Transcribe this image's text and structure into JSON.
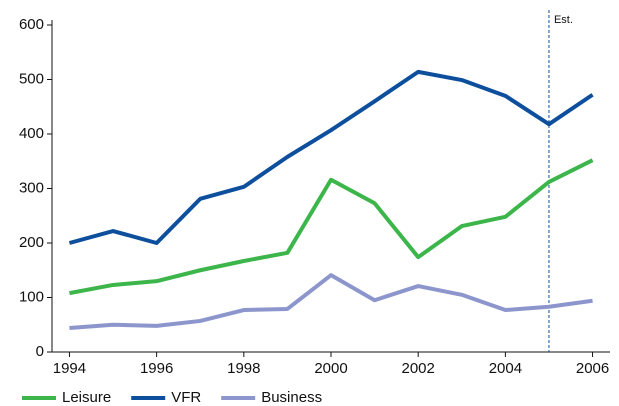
{
  "chart_data": {
    "type": "line",
    "x": [
      1994,
      1995,
      1996,
      1997,
      1998,
      1999,
      2000,
      2001,
      2002,
      2003,
      2004,
      2005,
      2006
    ],
    "series": [
      {
        "name": "Leisure",
        "color": "#3cb54a",
        "values": [
          108,
          123,
          130,
          150,
          167,
          182,
          316,
          273,
          174,
          231,
          248,
          312,
          352
        ]
      },
      {
        "name": "VFR",
        "color": "#0d4f9c",
        "values": [
          200,
          222,
          200,
          281,
          303,
          358,
          407,
          460,
          514,
          499,
          470,
          418,
          472
        ]
      },
      {
        "name": "Business",
        "color": "#8c96cc",
        "values": [
          44,
          50,
          48,
          57,
          77,
          79,
          141,
          95,
          121,
          105,
          77,
          83,
          94
        ]
      }
    ],
    "xlim": [
      1993.6,
      2006.4
    ],
    "xticks": [
      1994,
      1996,
      1998,
      2000,
      2002,
      2004,
      2006
    ],
    "ylim": [
      0,
      600
    ],
    "yticks": [
      0,
      100,
      200,
      300,
      400,
      500,
      600
    ],
    "annotation": {
      "text": "Est.",
      "x": 2005
    },
    "legend": "bottom-left"
  }
}
